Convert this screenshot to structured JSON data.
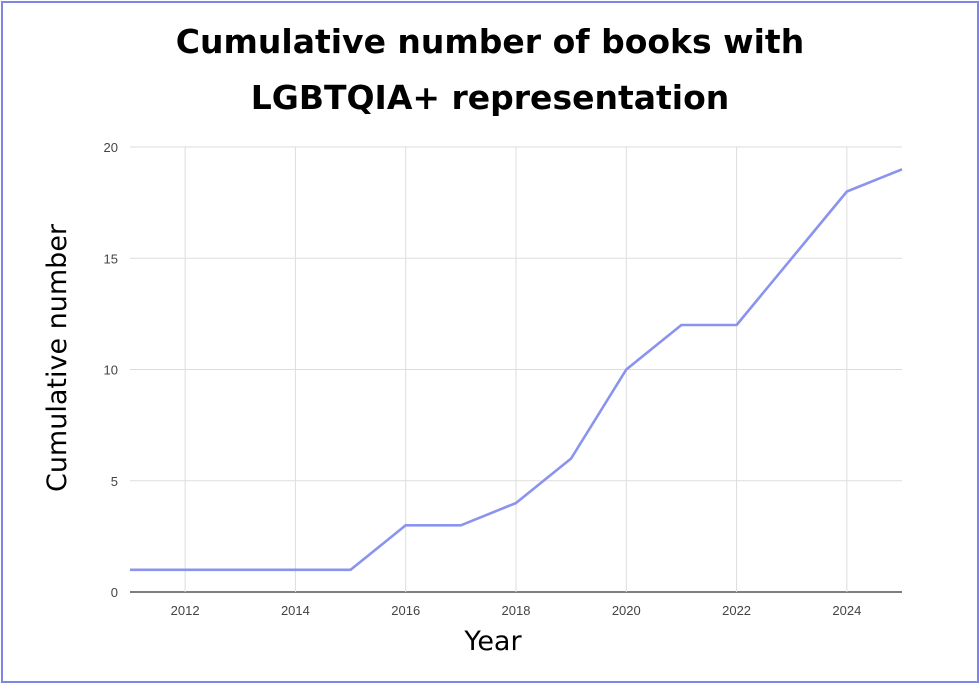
{
  "chart_data": {
    "type": "line",
    "title_lines": [
      "Cumulative number of books with",
      "LGBTQIA+ representation"
    ],
    "xlabel": "Year",
    "ylabel": "Cumulative number",
    "x_ticks": [
      "2012",
      "2014",
      "2016",
      "2018",
      "2020",
      "2022",
      "2024"
    ],
    "y_ticks": [
      "0",
      "5",
      "10",
      "15",
      "20"
    ],
    "xlim": [
      2011,
      2025
    ],
    "ylim": [
      0,
      20
    ],
    "grid": true,
    "line_color": "#8a93ee",
    "series": [
      {
        "x": [
          2011,
          2012,
          2013,
          2014,
          2015,
          2016,
          2017,
          2018,
          2019,
          2020,
          2021,
          2022,
          2023,
          2024,
          2025
        ],
        "values": [
          1,
          1,
          1,
          1,
          1,
          3,
          3,
          4,
          6,
          10,
          12,
          12,
          15,
          18,
          19
        ]
      }
    ]
  }
}
